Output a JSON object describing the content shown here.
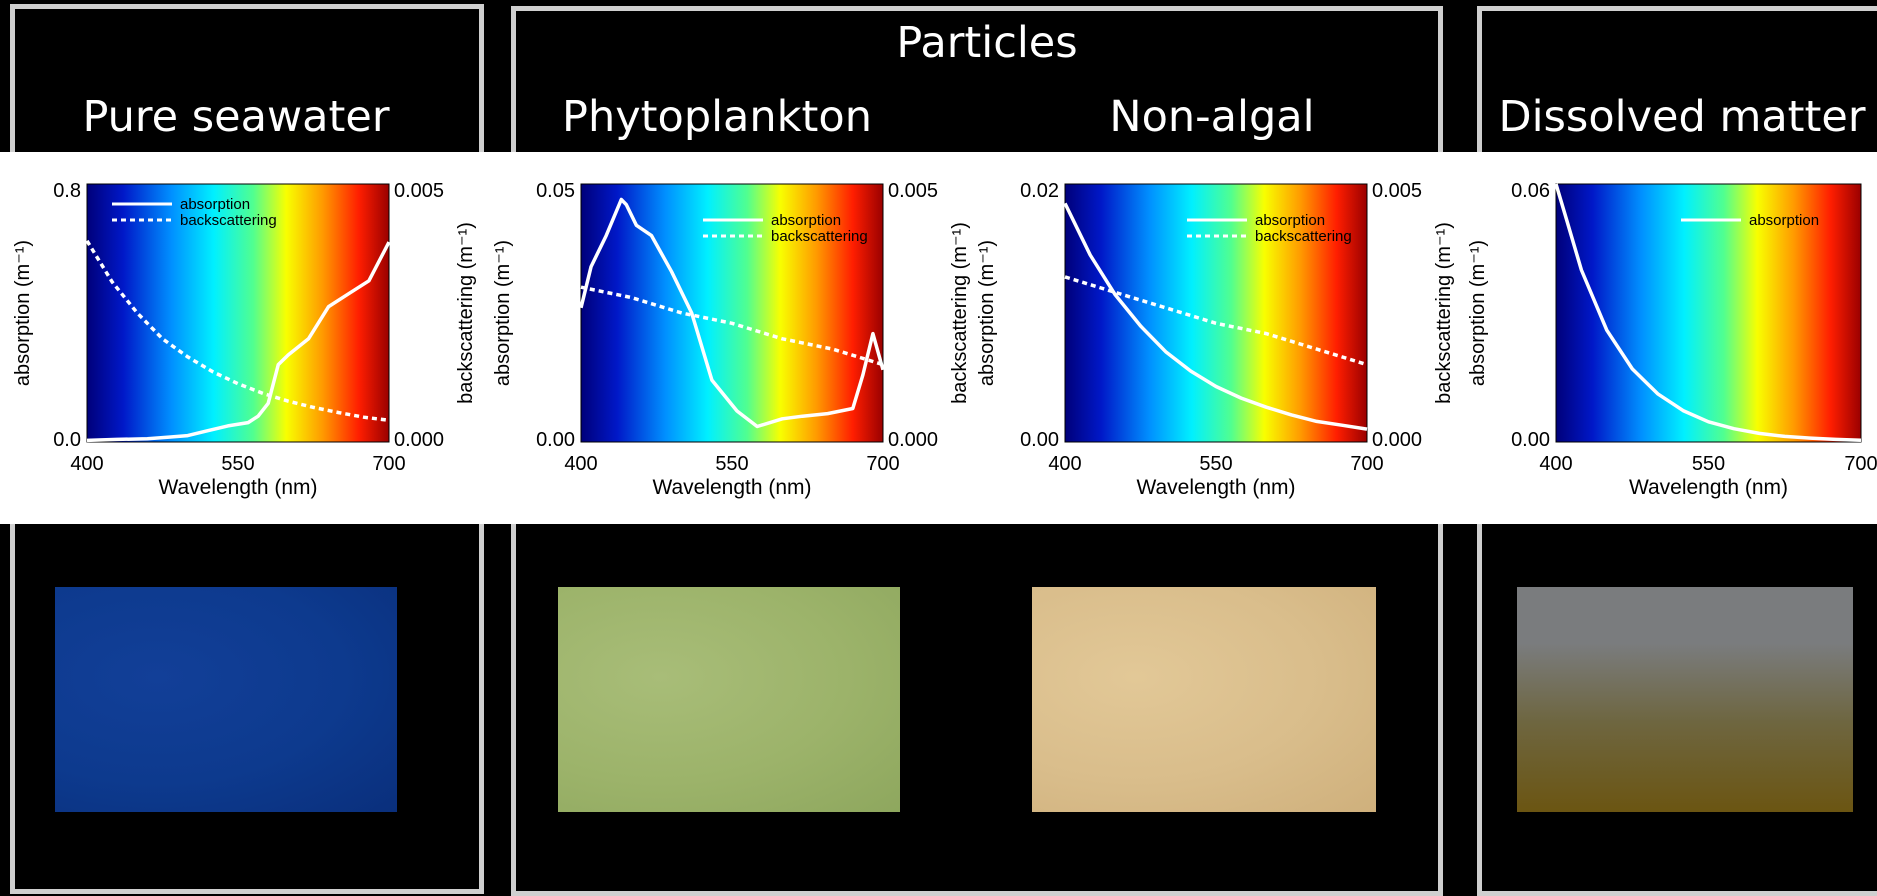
{
  "headings": {
    "particles": "Particles",
    "pure_seawater": "Pure seawater",
    "phytoplankton": "Phytoplankton",
    "non_algal": "Non-algal",
    "dissolved_matter": "Dissolved matter"
  },
  "photos": [
    {
      "name": "pure-seawater-photo",
      "description": "deep blue water surface",
      "colors": [
        "#0d3a8e",
        "#0a2f7c",
        "#123f98"
      ]
    },
    {
      "name": "phytoplankton-photo",
      "description": "green algal water",
      "colors": [
        "#9cb36a",
        "#8ea75e",
        "#a8bd78"
      ]
    },
    {
      "name": "non-algal-photo",
      "description": "sandy turbid water",
      "colors": [
        "#d9bd8b",
        "#cfb07c",
        "#e2c897"
      ]
    },
    {
      "name": "dissolved-matter-photo",
      "description": "brown CDOM-rich water with grey surface",
      "colors": [
        "#7a7c7e",
        "#6e6640",
        "#6b5512"
      ]
    }
  ],
  "chart_data": [
    {
      "type": "line",
      "name": "pure-seawater-chart",
      "xlabel": "Wavelength (nm)",
      "ylabel_left": "absorption (m⁻¹)",
      "ylabel_right": "backscattering (m⁻¹)",
      "xlim": [
        400,
        700
      ],
      "xticks": [
        "400",
        "550",
        "700"
      ],
      "ylim_left": [
        0,
        0.8
      ],
      "yticks_left": [
        "0.0",
        "0.8"
      ],
      "ylim_right": [
        0,
        0.005
      ],
      "yticks_right": [
        "0.000",
        "0.005"
      ],
      "background": "visible spectrum gradient",
      "legend_position": "top-left",
      "series": [
        {
          "name": "absorption",
          "style": "solid",
          "axis": "left",
          "x": [
            400,
            430,
            460,
            480,
            500,
            520,
            540,
            560,
            570,
            580,
            590,
            600,
            620,
            640,
            660,
            680,
            700
          ],
          "y": [
            0.005,
            0.008,
            0.01,
            0.015,
            0.02,
            0.035,
            0.05,
            0.06,
            0.08,
            0.12,
            0.24,
            0.27,
            0.32,
            0.42,
            0.46,
            0.5,
            0.62
          ]
        },
        {
          "name": "backscattering",
          "style": "dashed",
          "axis": "right",
          "x": [
            400,
            425,
            450,
            475,
            500,
            525,
            550,
            575,
            600,
            625,
            650,
            675,
            700
          ],
          "y": [
            0.0039,
            0.0031,
            0.0025,
            0.002,
            0.00165,
            0.00136,
            0.00113,
            0.00094,
            0.00079,
            0.00067,
            0.00057,
            0.00048,
            0.00042
          ]
        }
      ]
    },
    {
      "type": "line",
      "name": "phytoplankton-chart",
      "xlabel": "Wavelength (nm)",
      "ylabel_left": "absorption (m⁻¹)",
      "ylabel_right": "backscattering (m⁻¹)",
      "xlim": [
        400,
        700
      ],
      "xticks": [
        "400",
        "550",
        "700"
      ],
      "ylim_left": [
        0,
        0.05
      ],
      "yticks_left": [
        "0.00",
        "0.05"
      ],
      "ylim_right": [
        0,
        0.005
      ],
      "yticks_right": [
        "0.000",
        "0.005"
      ],
      "background": "visible spectrum gradient",
      "legend_position": "top-right",
      "series": [
        {
          "name": "absorption",
          "style": "solid",
          "axis": "left",
          "x": [
            400,
            410,
            425,
            440,
            445,
            455,
            470,
            490,
            510,
            530,
            555,
            575,
            600,
            620,
            645,
            670,
            680,
            690,
            700
          ],
          "y": [
            0.026,
            0.034,
            0.04,
            0.047,
            0.046,
            0.042,
            0.04,
            0.033,
            0.025,
            0.012,
            0.006,
            0.003,
            0.0045,
            0.005,
            0.0055,
            0.0065,
            0.013,
            0.021,
            0.014
          ]
        },
        {
          "name": "backscattering",
          "style": "dashed",
          "axis": "right",
          "x": [
            400,
            450,
            500,
            550,
            600,
            650,
            700
          ],
          "y": [
            0.003,
            0.0028,
            0.0025,
            0.0023,
            0.002,
            0.0018,
            0.0015
          ]
        }
      ]
    },
    {
      "type": "line",
      "name": "non-algal-chart",
      "xlabel": "Wavelength (nm)",
      "ylabel_left": "absorption (m⁻¹)",
      "ylabel_right": "backscattering (m⁻¹)",
      "xlim": [
        400,
        700
      ],
      "xticks": [
        "400",
        "550",
        "700"
      ],
      "ylim_left": [
        0,
        0.02
      ],
      "yticks_left": [
        "0.00",
        "0.02"
      ],
      "ylim_right": [
        0,
        0.005
      ],
      "yticks_right": [
        "0.000",
        "0.005"
      ],
      "background": "visible spectrum gradient",
      "legend_position": "top-right",
      "series": [
        {
          "name": "absorption",
          "style": "solid",
          "axis": "left",
          "x": [
            400,
            425,
            450,
            475,
            500,
            525,
            550,
            575,
            600,
            625,
            650,
            675,
            700
          ],
          "y": [
            0.0185,
            0.0145,
            0.0114,
            0.009,
            0.007,
            0.0055,
            0.0043,
            0.0034,
            0.0027,
            0.0021,
            0.0016,
            0.0013,
            0.001
          ]
        },
        {
          "name": "backscattering",
          "style": "dashed",
          "axis": "right",
          "x": [
            400,
            450,
            500,
            550,
            600,
            650,
            700
          ],
          "y": [
            0.0032,
            0.0029,
            0.0026,
            0.0023,
            0.0021,
            0.0018,
            0.0015
          ]
        }
      ]
    },
    {
      "type": "line",
      "name": "dissolved-matter-chart",
      "xlabel": "Wavelength (nm)",
      "ylabel_left": "absorption (m⁻¹)",
      "ylabel_right": "",
      "xlim": [
        400,
        700
      ],
      "xticks": [
        "400",
        "550",
        "700"
      ],
      "ylim_left": [
        0,
        0.06
      ],
      "yticks_left": [
        "0.00",
        "0.06"
      ],
      "background": "visible spectrum gradient",
      "legend_position": "top-right",
      "series": [
        {
          "name": "absorption",
          "style": "solid",
          "axis": "left",
          "x": [
            400,
            410,
            425,
            450,
            475,
            500,
            525,
            550,
            575,
            600,
            625,
            650,
            675,
            700
          ],
          "y": [
            0.062,
            0.052,
            0.04,
            0.026,
            0.017,
            0.0112,
            0.0073,
            0.0047,
            0.0031,
            0.002,
            0.0013,
            0.0009,
            0.0006,
            0.0004
          ]
        }
      ]
    }
  ]
}
